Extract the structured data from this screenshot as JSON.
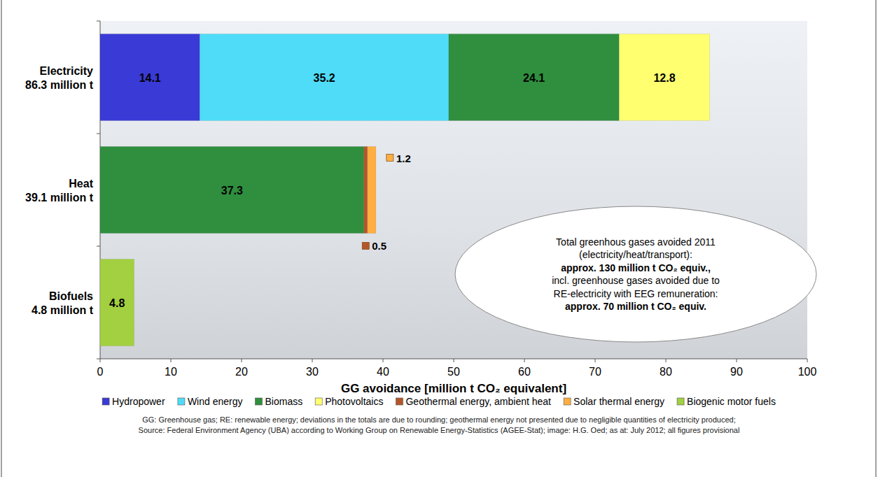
{
  "chart_data": {
    "type": "bar",
    "orientation": "horizontal",
    "stacked": true,
    "data_labels": true,
    "grid": false,
    "legend": "bottom",
    "categories": [
      "Electricity\n86.3 million t",
      "Heat\n39.1 million t",
      "Biofuels\n4.8 million t"
    ],
    "series": [
      {
        "name": "Hydropower",
        "color": "#3a3ad6",
        "values": [
          14.1,
          null,
          null
        ]
      },
      {
        "name": "Wind energy",
        "color": "#4fdcf8",
        "values": [
          35.2,
          null,
          null
        ]
      },
      {
        "name": "Biomass",
        "color": "#2f8f3e",
        "values": [
          24.1,
          37.3,
          null
        ]
      },
      {
        "name": "Photovoltaics",
        "color": "#ffff70",
        "values": [
          12.8,
          null,
          null
        ]
      },
      {
        "name": "Geothermal energy, ambient heat",
        "color": "#b5562a",
        "values": [
          null,
          0.5,
          null
        ]
      },
      {
        "name": "Solar thermal energy",
        "color": "#ffae42",
        "values": [
          null,
          1.2,
          null
        ]
      },
      {
        "name": "Biogenic motor fuels",
        "color": "#a2d040",
        "values": [
          null,
          null,
          4.8
        ]
      }
    ],
    "xlabel": "GG avoidance [million t CO₂ equivalent]",
    "xlim": [
      0,
      100
    ],
    "xticks": [
      0,
      10,
      20,
      30,
      40,
      50,
      60,
      70,
      80,
      90,
      100
    ],
    "annotation": [
      "Total greenhous gases avoided 2011",
      "(electricity/heat/transport):",
      "approx. 130 million t CO₂ equiv.,",
      "incl. greenhouse gases avoided due to",
      "RE-electricity with EEG remuneration:",
      "approx. 70 million t CO₂ equiv."
    ],
    "notes": [
      "GG: Greenhouse gas; RE: renewable energy; deviations in the totals are due to rounding; geothermal energy not presented due to negligible quantities of electricity produced;",
      "Source: Federal Environment Agency (UBA) according to Working Group on Renewable Energy-Statistics (AGEE-Stat); image: H.G. Oed; as at: July 2012; all figures provisional"
    ]
  }
}
